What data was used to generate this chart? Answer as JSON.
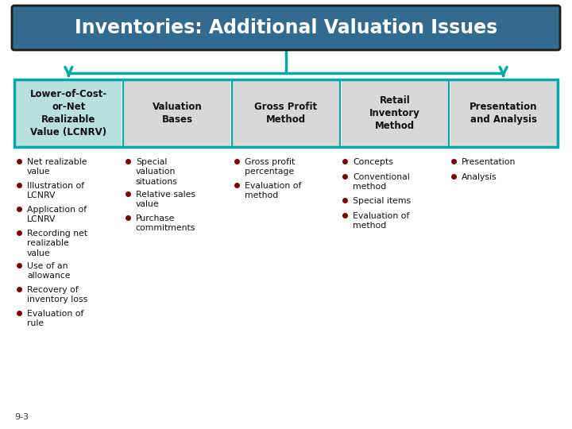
{
  "title": "Inventories: Additional Valuation Issues",
  "title_bg": "#336b8e",
  "title_text_color": "#ffffff",
  "header_bg_highlight": "#b8e0de",
  "header_bg_normal": "#d8d8d8",
  "header_border": "#00a8a8",
  "outer_border": "#00a8a8",
  "arrow_color": "#00a8a8",
  "bullet_color": "#7a0000",
  "bg_color": "#ffffff",
  "columns": [
    {
      "header": "Lower-of-Cost-\nor-Net\nRealizable\nValue (LCNRV)",
      "highlight": true,
      "items": [
        "Net realizable\nvalue",
        "Illustration of\nLCNRV",
        "Application of\nLCNRV",
        "Recording net\nrealizable\nvalue",
        "Use of an\nallowance",
        "Recovery of\ninventory loss",
        "Evaluation of\nrule"
      ]
    },
    {
      "header": "Valuation\nBases",
      "highlight": false,
      "items": [
        "Special\nvaluation\nsituations",
        "Relative sales\nvalue",
        "Purchase\ncommitments"
      ]
    },
    {
      "header": "Gross Profit\nMethod",
      "highlight": false,
      "items": [
        "Gross profit\npercentage",
        "Evaluation of\nmethod"
      ]
    },
    {
      "header": "Retail\nInventory\nMethod",
      "highlight": false,
      "items": [
        "Concepts",
        "Conventional\nmethod",
        "Special items",
        "Evaluation of\nmethod"
      ]
    },
    {
      "header": "Presentation\nand Analysis",
      "highlight": false,
      "items": [
        "Presentation",
        "Analysis"
      ]
    }
  ],
  "footnote": "9-3"
}
